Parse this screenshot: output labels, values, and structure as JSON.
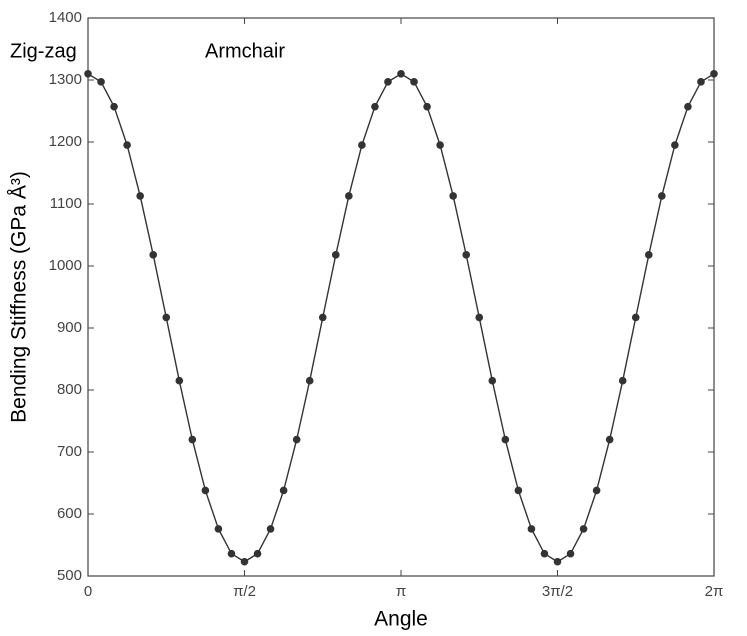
{
  "chart_data": {
    "type": "line",
    "x_label": "Angle",
    "y_label": "Bending Stiffness (GPa Å³)",
    "annotations": [
      "Zig-zag",
      "Armchair"
    ],
    "x": [
      0,
      0.1309,
      0.2618,
      0.3927,
      0.5236,
      0.6545,
      0.7854,
      0.9163,
      1.0472,
      1.1781,
      1.309,
      1.4399,
      1.5708,
      1.7017,
      1.8326,
      1.9635,
      2.0944,
      2.2253,
      2.3562,
      2.4871,
      2.618,
      2.7489,
      2.8798,
      3.0107,
      3.1416,
      3.2725,
      3.4034,
      3.5343,
      3.6652,
      3.7961,
      3.927,
      4.0579,
      4.1888,
      4.3197,
      4.4506,
      4.5815,
      4.7124,
      4.8433,
      4.9742,
      5.1051,
      5.236,
      5.3669,
      5.4978,
      5.6287,
      5.7596,
      5.8905,
      6.0214,
      6.1523,
      6.2832
    ],
    "series": [
      {
        "color": "#333333",
        "values": [
          1310,
          1297,
          1257,
          1195,
          1113,
          1018,
          917,
          815,
          720,
          638,
          576,
          536,
          523,
          536,
          576,
          638,
          720,
          815,
          917,
          1018,
          1113,
          1195,
          1257,
          1297,
          1310,
          1297,
          1257,
          1195,
          1113,
          1018,
          917,
          815,
          720,
          638,
          576,
          536,
          523,
          536,
          576,
          638,
          720,
          815,
          917,
          1018,
          1113,
          1195,
          1257,
          1297,
          1310
        ]
      }
    ],
    "xlim": [
      0,
      6.2832
    ],
    "xticks": [
      0,
      {
        "value": 1.5708,
        "label": "π/2"
      },
      {
        "value": 3.1416,
        "label": "π"
      },
      {
        "value": 4.7124,
        "label": "3π/2"
      },
      {
        "value": 6.2832,
        "label": "2π"
      }
    ],
    "ylim": [
      500,
      1400
    ],
    "yticks": [
      500,
      600,
      700,
      800,
      900,
      1000,
      1100,
      1200,
      1300,
      1400
    ],
    "grid": false
  }
}
